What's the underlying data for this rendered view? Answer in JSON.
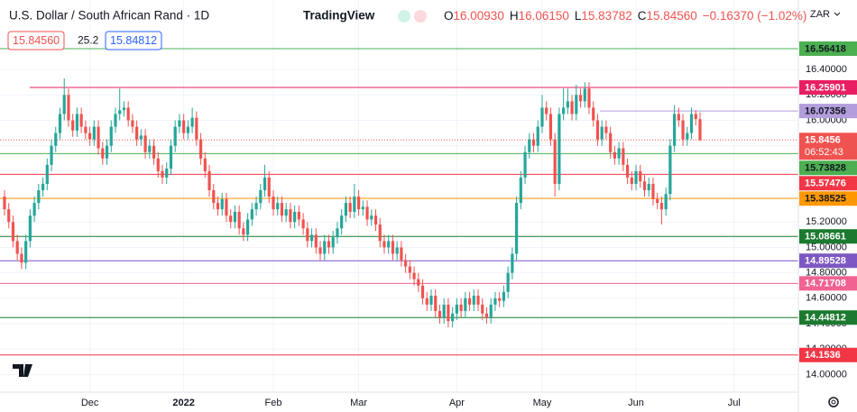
{
  "header": {
    "title": "U.S. Dollar / South African Rand · 1D",
    "brand": "TradingView",
    "ohlc": [
      [
        "O",
        "16.00930"
      ],
      [
        "H",
        "16.06150"
      ],
      [
        "L",
        "15.83782"
      ],
      [
        "C",
        "15.84560"
      ]
    ],
    "change": "−0.16370 (−1.02%)",
    "bid": "15.84560",
    "spread": "25.2",
    "ask": "15.84812",
    "currency": "ZAR"
  },
  "chart_data": {
    "type": "candlestick",
    "up_color": "#26a69a",
    "down_color": "#ef5350",
    "grid": true,
    "ylim": [
      13.861,
      16.947
    ],
    "yticks": [
      {
        "value": 14.0,
        "label": "14.00000"
      },
      {
        "value": 14.2,
        "label": "14.20000"
      },
      {
        "value": 14.4,
        "label": "14.40000"
      },
      {
        "value": 14.6,
        "label": "14.60000"
      },
      {
        "value": 14.8,
        "label": "14.80000"
      },
      {
        "value": 15.0,
        "label": "15.00000"
      },
      {
        "value": 15.2,
        "label": "15.20000"
      },
      {
        "value": 15.4,
        "label": "15.40000"
      },
      {
        "value": 15.6,
        "label": "15.60000"
      },
      {
        "value": 15.8,
        "label": "15.80000"
      },
      {
        "value": 16.0,
        "label": "16.00000"
      },
      {
        "value": 16.2,
        "label": "16.20000"
      },
      {
        "value": 16.4,
        "label": "16.40000"
      }
    ],
    "categories": [
      null,
      null,
      null,
      null,
      null,
      null,
      null,
      null,
      null,
      null,
      null,
      null,
      null,
      null,
      null,
      null,
      null,
      null,
      null,
      null,
      "Dec",
      null,
      null,
      null,
      null,
      null,
      null,
      null,
      null,
      null,
      null,
      null,
      null,
      null,
      null,
      null,
      null,
      null,
      null,
      null,
      null,
      null,
      "2022",
      null,
      null,
      null,
      null,
      null,
      null,
      null,
      null,
      null,
      null,
      null,
      null,
      null,
      null,
      null,
      null,
      null,
      null,
      null,
      null,
      "Feb",
      null,
      null,
      null,
      null,
      null,
      null,
      null,
      null,
      null,
      null,
      null,
      null,
      null,
      null,
      null,
      null,
      null,
      null,
      null,
      "Mar",
      null,
      null,
      null,
      null,
      null,
      null,
      null,
      null,
      null,
      null,
      null,
      null,
      null,
      null,
      null,
      null,
      null,
      null,
      null,
      null,
      null,
      null,
      "Apr",
      null,
      null,
      null,
      null,
      null,
      null,
      null,
      null,
      null,
      null,
      null,
      null,
      null,
      null,
      null,
      null,
      null,
      null,
      null,
      "May",
      null,
      null,
      null,
      null,
      null,
      null,
      null,
      null,
      null,
      null,
      null,
      null,
      null,
      null,
      null,
      null,
      null,
      null,
      null,
      null,
      null,
      "Jun",
      null,
      null,
      null,
      null,
      null,
      null,
      null,
      null,
      null,
      null,
      null,
      null,
      null,
      null,
      null,
      null,
      null,
      null,
      null,
      null,
      null,
      null,
      "Jul",
      null,
      null,
      null,
      null,
      null,
      null,
      null,
      null,
      null,
      null,
      null,
      null,
      null,
      null,
      null
    ],
    "open": [
      15.4,
      15.3,
      15.2,
      15.05,
      14.95,
      14.88,
      15.05,
      15.25,
      15.35,
      15.45,
      15.5,
      15.65,
      15.8,
      15.9,
      16.05,
      16.2,
      16.0,
      15.92,
      16.05,
      15.95,
      15.9,
      15.85,
      15.95,
      15.78,
      15.7,
      15.8,
      15.95,
      16.05,
      16.08,
      16.1,
      16.0,
      15.95,
      15.85,
      15.88,
      15.75,
      15.8,
      15.7,
      15.6,
      15.55,
      15.62,
      15.8,
      15.95,
      16.0,
      15.9,
      15.95,
      16.02,
      15.85,
      15.7,
      15.6,
      15.45,
      15.35,
      15.3,
      15.38,
      15.25,
      15.2,
      15.28,
      15.15,
      15.1,
      15.22,
      15.3,
      15.35,
      15.45,
      15.55,
      15.4,
      15.3,
      15.35,
      15.25,
      15.3,
      15.2,
      15.28,
      15.22,
      15.15,
      15.05,
      15.1,
      15.0,
      14.95,
      15.05,
      15.0,
      15.08,
      15.15,
      15.25,
      15.35,
      15.28,
      15.4,
      15.3,
      15.32,
      15.22,
      15.25,
      15.18,
      15.05,
      15.0,
      15.05,
      14.95,
      15.0,
      14.9,
      14.85,
      14.8,
      14.75,
      14.7,
      14.6,
      14.55,
      14.62,
      14.5,
      14.45,
      14.55,
      14.42,
      14.48,
      14.55,
      14.5,
      14.6,
      14.55,
      14.62,
      14.55,
      14.48,
      14.45,
      14.55,
      14.6,
      14.58,
      14.65,
      14.8,
      14.95,
      15.35,
      15.55,
      15.75,
      15.85,
      15.8,
      15.95,
      16.1,
      16.05,
      15.85,
      15.5,
      16.05,
      16.1,
      16.15,
      16.05,
      16.2,
      16.15,
      16.25,
      16.1,
      16.0,
      15.85,
      15.95,
      15.9,
      15.75,
      15.7,
      15.78,
      15.65,
      15.55,
      15.5,
      15.6,
      15.52,
      15.45,
      15.5,
      15.38,
      15.35,
      15.3,
      15.42,
      15.8,
      16.05,
      16.0,
      15.85,
      15.9,
      16.05,
      16.0093,
      null,
      null,
      null,
      null,
      null,
      null,
      null,
      null,
      null,
      null,
      null,
      null,
      null,
      null,
      null,
      null,
      null,
      null,
      null,
      null,
      null,
      null,
      null
    ],
    "high": [
      15.45,
      15.35,
      15.25,
      15.1,
      15.0,
      15.1,
      15.3,
      15.4,
      15.5,
      15.55,
      15.7,
      15.85,
      15.95,
      16.1,
      16.33,
      16.25,
      16.05,
      16.1,
      16.1,
      16.0,
      15.95,
      16.0,
      16.0,
      15.83,
      15.85,
      16.0,
      16.1,
      16.25,
      16.15,
      16.15,
      16.05,
      16.0,
      15.93,
      15.93,
      15.85,
      15.85,
      15.75,
      15.65,
      15.67,
      15.85,
      16.0,
      16.05,
      16.05,
      16.0,
      16.1,
      16.07,
      15.9,
      15.75,
      15.65,
      15.5,
      15.4,
      15.43,
      15.43,
      15.3,
      15.33,
      15.33,
      15.2,
      15.27,
      15.35,
      15.4,
      15.5,
      15.65,
      15.6,
      15.45,
      15.4,
      15.4,
      15.35,
      15.35,
      15.33,
      15.33,
      15.27,
      15.2,
      15.15,
      15.15,
      15.05,
      15.1,
      15.1,
      15.13,
      15.2,
      15.3,
      15.4,
      15.4,
      15.5,
      15.45,
      15.37,
      15.37,
      15.3,
      15.3,
      15.23,
      15.1,
      15.1,
      15.1,
      15.05,
      15.05,
      14.95,
      14.9,
      14.85,
      14.8,
      14.75,
      14.65,
      14.67,
      14.67,
      14.55,
      14.6,
      14.6,
      14.53,
      14.6,
      14.6,
      14.65,
      14.65,
      14.67,
      14.67,
      14.6,
      14.53,
      14.6,
      14.65,
      14.65,
      14.7,
      14.85,
      15.0,
      15.4,
      15.6,
      15.8,
      15.9,
      15.9,
      16.0,
      16.2,
      16.15,
      16.1,
      15.9,
      16.1,
      16.25,
      16.25,
      16.2,
      16.28,
      16.25,
      16.3,
      16.3,
      16.15,
      16.05,
      16.0,
      16.0,
      15.95,
      15.8,
      15.83,
      15.83,
      15.7,
      15.6,
      15.65,
      15.65,
      15.57,
      15.55,
      15.55,
      15.43,
      15.4,
      15.47,
      15.85,
      16.12,
      16.1,
      16.05,
      15.95,
      16.1,
      16.08,
      16.0615,
      null,
      null,
      null,
      null,
      null,
      null,
      null,
      null,
      null,
      null,
      null,
      null,
      null,
      null,
      null,
      null,
      null,
      null,
      null,
      null,
      null,
      null,
      null
    ],
    "low": [
      15.25,
      15.15,
      15.0,
      14.9,
      14.83,
      14.83,
      15.0,
      15.2,
      15.3,
      15.4,
      15.45,
      15.6,
      15.75,
      15.85,
      16.0,
      15.95,
      15.87,
      15.87,
      15.9,
      15.85,
      15.8,
      15.8,
      15.73,
      15.65,
      15.65,
      15.75,
      15.9,
      16.0,
      16.03,
      15.95,
      15.9,
      15.8,
      15.8,
      15.7,
      15.7,
      15.65,
      15.55,
      15.5,
      15.5,
      15.57,
      15.75,
      15.9,
      15.85,
      15.85,
      15.9,
      15.8,
      15.65,
      15.55,
      15.4,
      15.3,
      15.25,
      15.25,
      15.2,
      15.15,
      15.15,
      15.1,
      15.05,
      15.05,
      15.17,
      15.25,
      15.3,
      15.4,
      15.35,
      15.25,
      15.25,
      15.2,
      15.2,
      15.15,
      15.15,
      15.17,
      15.1,
      15.0,
      15.0,
      14.95,
      14.9,
      14.9,
      14.95,
      14.95,
      15.03,
      15.1,
      15.2,
      15.23,
      15.23,
      15.25,
      15.25,
      15.17,
      15.17,
      15.13,
      15.0,
      14.95,
      14.95,
      14.9,
      14.9,
      14.85,
      14.8,
      14.75,
      14.7,
      14.65,
      14.55,
      14.5,
      14.5,
      14.45,
      14.4,
      14.4,
      14.37,
      14.37,
      14.43,
      14.45,
      14.45,
      14.5,
      14.5,
      14.5,
      14.43,
      14.4,
      14.4,
      14.5,
      14.53,
      14.53,
      14.6,
      14.75,
      14.9,
      15.3,
      15.5,
      15.7,
      15.75,
      15.75,
      15.9,
      16.0,
      15.8,
      15.4,
      15.45,
      16.0,
      16.05,
      16.0,
      16.0,
      16.1,
      16.1,
      16.05,
      15.95,
      15.8,
      15.8,
      15.85,
      15.7,
      15.65,
      15.65,
      15.6,
      15.5,
      15.45,
      15.45,
      15.47,
      15.4,
      15.4,
      15.33,
      15.3,
      15.18,
      15.25,
      15.37,
      15.75,
      15.95,
      15.8,
      15.8,
      15.85,
      15.96,
      15.83782,
      null,
      null,
      null,
      null,
      null,
      null,
      null,
      null,
      null,
      null,
      null,
      null,
      null,
      null,
      null,
      null,
      null,
      null,
      null,
      null,
      null,
      null,
      null
    ],
    "close": [
      15.3,
      15.2,
      15.05,
      14.95,
      14.88,
      15.05,
      15.25,
      15.35,
      15.45,
      15.5,
      15.65,
      15.8,
      15.9,
      16.05,
      16.2,
      16.0,
      15.92,
      16.05,
      15.95,
      15.9,
      15.85,
      15.95,
      15.78,
      15.7,
      15.8,
      15.95,
      16.05,
      16.08,
      16.1,
      16.0,
      15.95,
      15.85,
      15.88,
      15.75,
      15.8,
      15.7,
      15.6,
      15.55,
      15.62,
      15.8,
      15.95,
      16.0,
      15.9,
      15.95,
      16.02,
      15.85,
      15.7,
      15.6,
      15.45,
      15.35,
      15.3,
      15.38,
      15.25,
      15.2,
      15.28,
      15.15,
      15.1,
      15.22,
      15.3,
      15.35,
      15.45,
      15.55,
      15.4,
      15.3,
      15.35,
      15.25,
      15.3,
      15.2,
      15.28,
      15.22,
      15.15,
      15.05,
      15.1,
      15.0,
      14.95,
      15.05,
      15.0,
      15.08,
      15.15,
      15.25,
      15.35,
      15.28,
      15.4,
      15.3,
      15.32,
      15.22,
      15.25,
      15.18,
      15.05,
      15.0,
      15.05,
      14.95,
      15.0,
      14.9,
      14.85,
      14.8,
      14.75,
      14.7,
      14.6,
      14.55,
      14.62,
      14.5,
      14.45,
      14.55,
      14.42,
      14.48,
      14.55,
      14.5,
      14.6,
      14.55,
      14.62,
      14.55,
      14.48,
      14.45,
      14.55,
      14.6,
      14.58,
      14.65,
      14.8,
      14.95,
      15.35,
      15.55,
      15.75,
      15.85,
      15.8,
      15.95,
      16.1,
      16.05,
      15.85,
      15.5,
      16.05,
      16.1,
      16.15,
      16.05,
      16.2,
      16.15,
      16.25,
      16.1,
      16.0,
      15.85,
      15.95,
      15.9,
      15.75,
      15.7,
      15.78,
      15.65,
      15.55,
      15.5,
      15.6,
      15.52,
      15.45,
      15.5,
      15.38,
      15.35,
      15.3,
      15.42,
      15.8,
      16.05,
      16.0,
      15.85,
      15.9,
      16.05,
      16.01,
      15.8456,
      null,
      null,
      null,
      null,
      null,
      null,
      null,
      null,
      null,
      null,
      null,
      null,
      null,
      null,
      null,
      null,
      null,
      null,
      null,
      null,
      null,
      null,
      null
    ],
    "levels": [
      {
        "value": 16.56418,
        "color": "#4caf50",
        "text_color": "#131722"
      },
      {
        "value": 16.25901,
        "color": "#e91e63",
        "text_color": "#ffffff"
      },
      {
        "value": 16.07356,
        "color": "#b39ddb",
        "text_color": "#131722"
      },
      {
        "value": 15.8456,
        "color": "#ef5350",
        "text_color": "#ffffff",
        "countdown": "06:52:43",
        "dotted": true
      },
      {
        "value": 15.73828,
        "color": "#4caf50",
        "text_color": "#131722"
      },
      {
        "value": 15.57476,
        "color": "#f23645",
        "text_color": "#ffffff"
      },
      {
        "value": 15.38525,
        "color": "#ff9800",
        "text_color": "#131722"
      },
      {
        "value": 15.08661,
        "color": "#1b7a2f",
        "text_color": "#ffffff"
      },
      {
        "value": 14.89528,
        "color": "#7e57c2",
        "text_color": "#ffffff"
      },
      {
        "value": 14.71708,
        "color": "#f06292",
        "text_color": "#ffffff"
      },
      {
        "value": 14.44812,
        "color": "#1b7a2f",
        "text_color": "#ffffff"
      },
      {
        "value": 14.1536,
        "color": "#f23645",
        "text_color": "#ffffff"
      }
    ]
  }
}
